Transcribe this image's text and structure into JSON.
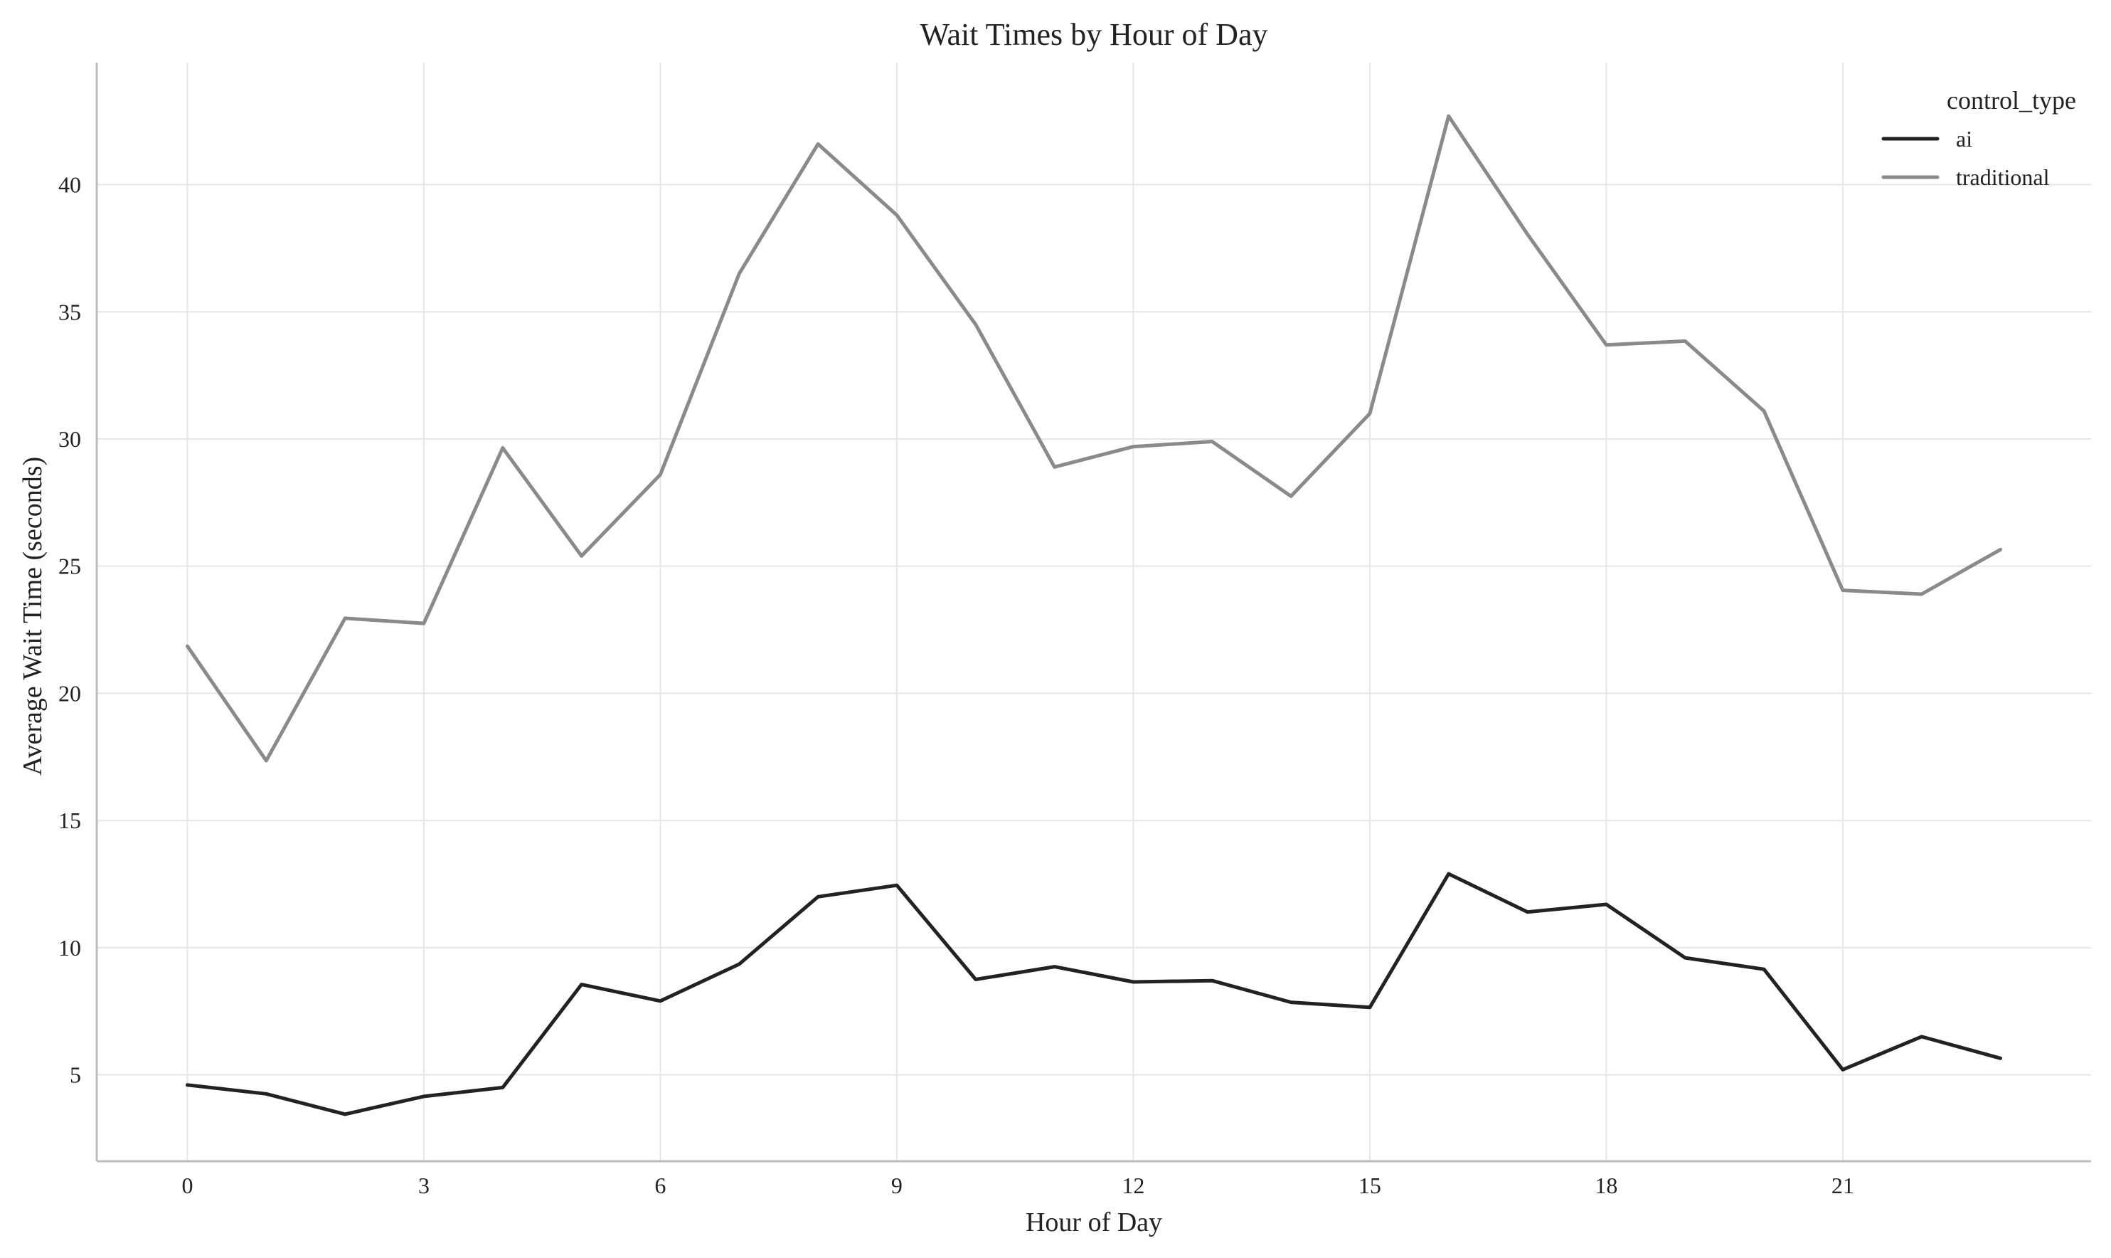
{
  "chart_data": {
    "type": "line",
    "title": "Wait Times by Hour of Day",
    "xlabel": "Hour of Day",
    "ylabel": "Average Wait Time (seconds)",
    "x": [
      0,
      1,
      2,
      3,
      4,
      5,
      6,
      7,
      8,
      9,
      10,
      11,
      12,
      13,
      14,
      15,
      16,
      17,
      18,
      19,
      20,
      21,
      22,
      23
    ],
    "xticks": [
      0,
      3,
      6,
      9,
      12,
      15,
      18,
      21
    ],
    "yticks": [
      5,
      10,
      15,
      20,
      25,
      30,
      35,
      40
    ],
    "xlim": [
      -1.15,
      24.15
    ],
    "ylim": [
      1.6,
      44.8
    ],
    "grid": true,
    "legend": {
      "title": "control_type",
      "position": "top-right"
    },
    "series": [
      {
        "name": "ai",
        "color": "#222222",
        "values": [
          4.6,
          4.25,
          3.45,
          4.15,
          4.5,
          8.55,
          7.9,
          9.35,
          12.0,
          12.45,
          8.75,
          9.25,
          8.65,
          8.7,
          7.85,
          7.65,
          12.9,
          11.4,
          11.7,
          9.6,
          9.15,
          5.2,
          6.5,
          5.65
        ]
      },
      {
        "name": "traditional",
        "color": "#8a8a8a",
        "values": [
          21.85,
          17.35,
          22.95,
          22.75,
          29.65,
          25.4,
          28.6,
          36.5,
          41.6,
          38.8,
          34.5,
          28.9,
          29.7,
          29.9,
          27.75,
          31.0,
          42.7,
          38.05,
          33.7,
          33.85,
          31.1,
          24.05,
          23.9,
          25.65
        ]
      }
    ],
    "colors": {
      "grid": "#e6e6e6",
      "axis": "#bdbdbd",
      "text": "#222222"
    }
  }
}
